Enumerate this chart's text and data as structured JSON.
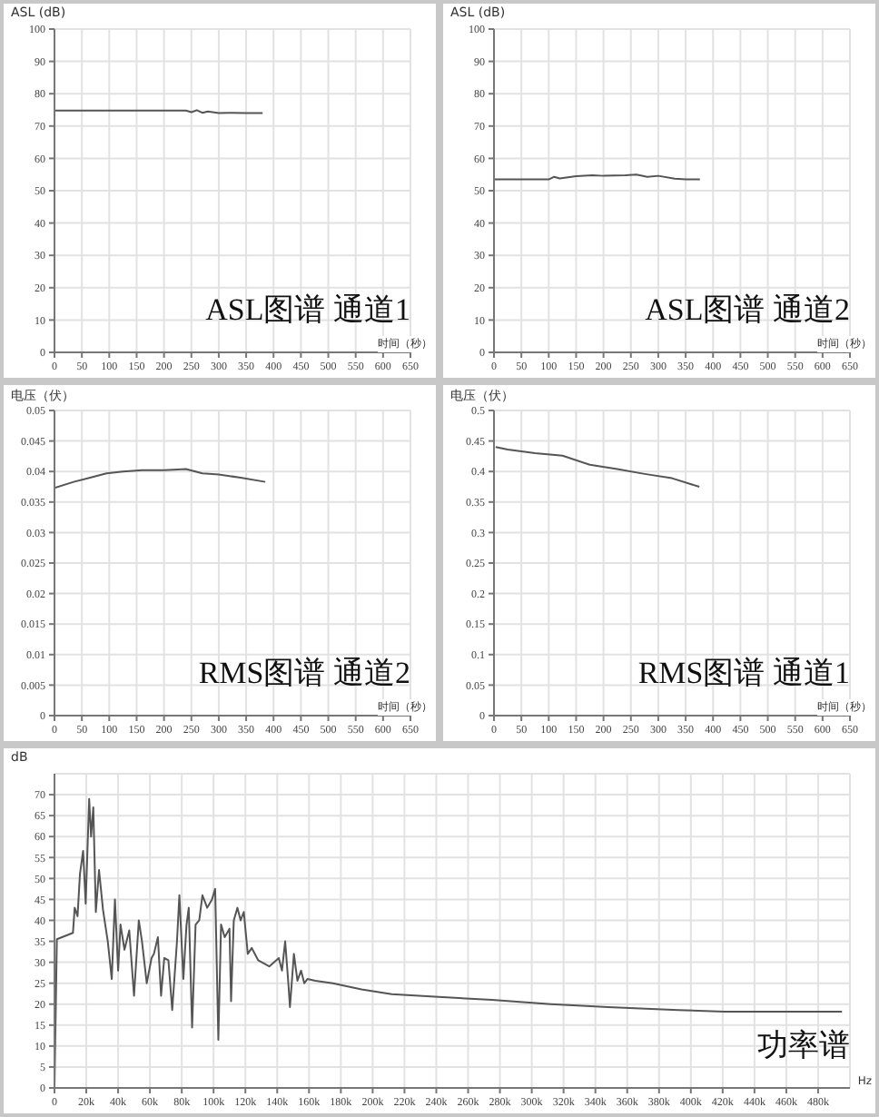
{
  "chart_data": [
    {
      "type": "line",
      "ylabel": "ASL (dB)",
      "xlabel": "时间（秒）",
      "annotations": [
        "ASL图谱 通道1"
      ],
      "grid": true,
      "color": "#555555",
      "xlim": [
        0,
        650
      ],
      "xticks": [
        0,
        50,
        100,
        150,
        200,
        250,
        300,
        350,
        400,
        450,
        500,
        550,
        600,
        650
      ],
      "ylim": [
        0,
        100
      ],
      "yticks": [
        0,
        10,
        20,
        30,
        40,
        50,
        60,
        70,
        80,
        90,
        100
      ],
      "x": [
        0,
        50,
        100,
        150,
        200,
        240,
        250,
        260,
        270,
        280,
        300,
        320,
        350,
        380
      ],
      "values": [
        74.8,
        74.8,
        74.8,
        74.8,
        74.8,
        74.8,
        74.3,
        74.9,
        74.1,
        74.5,
        74,
        74.1,
        74,
        74
      ]
    },
    {
      "type": "line",
      "ylabel": "ASL (dB)",
      "xlabel": "时间（秒）",
      "annotations": [
        "ASL图谱 通道2"
      ],
      "grid": true,
      "color": "#555555",
      "xlim": [
        0,
        650
      ],
      "xticks": [
        0,
        50,
        100,
        150,
        200,
        250,
        300,
        350,
        400,
        450,
        500,
        550,
        600,
        650
      ],
      "ylim": [
        0,
        100
      ],
      "yticks": [
        0,
        10,
        20,
        30,
        40,
        50,
        60,
        70,
        80,
        90,
        100
      ],
      "x": [
        0,
        100,
        110,
        120,
        150,
        180,
        200,
        240,
        260,
        280,
        300,
        330,
        350,
        376
      ],
      "values": [
        53.5,
        53.5,
        54.3,
        53.8,
        54.5,
        54.8,
        54.6,
        54.8,
        55,
        54.3,
        54.6,
        53.7,
        53.5,
        53.5
      ]
    },
    {
      "type": "line",
      "ylabel": "电压（伏）",
      "xlabel": "时间（秒）",
      "annotations": [
        "RMS图谱 通道2"
      ],
      "grid": true,
      "color": "#555555",
      "xlim": [
        0,
        650
      ],
      "xticks": [
        0,
        50,
        100,
        150,
        200,
        250,
        300,
        350,
        400,
        450,
        500,
        550,
        600,
        650
      ],
      "ylim": [
        0,
        0.05
      ],
      "yticks": [
        0,
        0.005,
        0.01,
        0.015,
        0.02,
        0.025,
        0.03,
        0.035,
        0.04,
        0.045,
        0.05
      ],
      "x": [
        0,
        35,
        65,
        95,
        125,
        160,
        200,
        240,
        270,
        300,
        340,
        385
      ],
      "values": [
        0.0373,
        0.0383,
        0.039,
        0.0397,
        0.04,
        0.0402,
        0.0402,
        0.0404,
        0.0397,
        0.0395,
        0.039,
        0.0383
      ]
    },
    {
      "type": "line",
      "ylabel": "电压（伏）",
      "xlabel": "时间（秒）",
      "annotations": [
        "RMS图谱 通道1"
      ],
      "grid": true,
      "color": "#555555",
      "xlim": [
        0,
        650
      ],
      "xticks": [
        0,
        50,
        100,
        150,
        200,
        250,
        300,
        350,
        400,
        450,
        500,
        550,
        600,
        650
      ],
      "ylim": [
        0,
        0.5
      ],
      "yticks": [
        0,
        0.05,
        0.1,
        0.15,
        0.2,
        0.25,
        0.3,
        0.35,
        0.4,
        0.45,
        0.5
      ],
      "x": [
        3,
        25,
        75,
        125,
        175,
        225,
        275,
        325,
        375
      ],
      "values": [
        0.44,
        0.436,
        0.43,
        0.426,
        0.411,
        0.404,
        0.396,
        0.389,
        0.375
      ]
    },
    {
      "type": "line",
      "ylabel": "dB",
      "xlabel": "Hz",
      "annotations": [
        "功率谱"
      ],
      "grid": true,
      "color": "#555555",
      "xlim": [
        0,
        500000
      ],
      "xticks": [
        0,
        {
          "value": 20000,
          "label": "20k"
        },
        {
          "value": 40000,
          "label": "40k"
        },
        {
          "value": 60000,
          "label": "60k"
        },
        {
          "value": 80000,
          "label": "80k"
        },
        {
          "value": 100000,
          "label": "100k"
        },
        {
          "value": 120000,
          "label": "120k"
        },
        {
          "value": 140000,
          "label": "140k"
        },
        {
          "value": 160000,
          "label": "160k"
        },
        {
          "value": 180000,
          "label": "180k"
        },
        {
          "value": 200000,
          "label": "200k"
        },
        {
          "value": 220000,
          "label": "220k"
        },
        {
          "value": 240000,
          "label": "240k"
        },
        {
          "value": 260000,
          "label": "260k"
        },
        {
          "value": 280000,
          "label": "280k"
        },
        {
          "value": 300000,
          "label": "300k"
        },
        {
          "value": 320000,
          "label": "320k"
        },
        {
          "value": 340000,
          "label": "340k"
        },
        {
          "value": 360000,
          "label": "360k"
        },
        {
          "value": 380000,
          "label": "380k"
        },
        {
          "value": 400000,
          "label": "400k"
        },
        {
          "value": 420000,
          "label": "420k"
        },
        {
          "value": 440000,
          "label": "440k"
        },
        {
          "value": 460000,
          "label": "460k"
        },
        {
          "value": 480000,
          "label": "480k"
        }
      ],
      "ylim": [
        0,
        75
      ],
      "yticks": [
        0,
        5,
        10,
        15,
        20,
        25,
        30,
        35,
        40,
        45,
        50,
        55,
        60,
        65,
        70
      ],
      "x": [
        0,
        1500,
        11600,
        12700,
        14500,
        16000,
        18000,
        19600,
        21800,
        23000,
        24400,
        26000,
        28000,
        30500,
        33500,
        36000,
        38000,
        40000,
        41500,
        44000,
        47000,
        50000,
        53000,
        55000,
        58000,
        61000,
        62500,
        65000,
        67000,
        69000,
        71600,
        74000,
        77000,
        78500,
        81000,
        83000,
        84400,
        86500,
        88700,
        91000,
        93000,
        96000,
        99000,
        101000,
        103000,
        104700,
        107000,
        110000,
        111000,
        112700,
        115000,
        117000,
        119000,
        121500,
        124000,
        128000,
        135000,
        141000,
        143000,
        145000,
        147000,
        148000,
        150500,
        152700,
        155000,
        157000,
        159000,
        164000,
        175000,
        193000,
        212000,
        239000,
        275000,
        312000,
        348000,
        392000,
        421000,
        495000
      ],
      "values": [
        0,
        35.5,
        37,
        43,
        41,
        51,
        56.6,
        44,
        69,
        60,
        67,
        42,
        52,
        42.5,
        35,
        26,
        45,
        28,
        39,
        33,
        37.6,
        22,
        40,
        35,
        25,
        31,
        32,
        36,
        22,
        31,
        30.5,
        18.6,
        35,
        46,
        26,
        39,
        43,
        14.4,
        39,
        40,
        46,
        43,
        45,
        47.5,
        11.5,
        39,
        36,
        38,
        20.7,
        40,
        43,
        40,
        42,
        32,
        33.4,
        30.5,
        29,
        31,
        28,
        35,
        25,
        19.3,
        32,
        25.6,
        28,
        25,
        26,
        25.6,
        25,
        23.5,
        22.4,
        21.8,
        21,
        20,
        19.3,
        18.6,
        18.2,
        18.2
      ]
    }
  ]
}
